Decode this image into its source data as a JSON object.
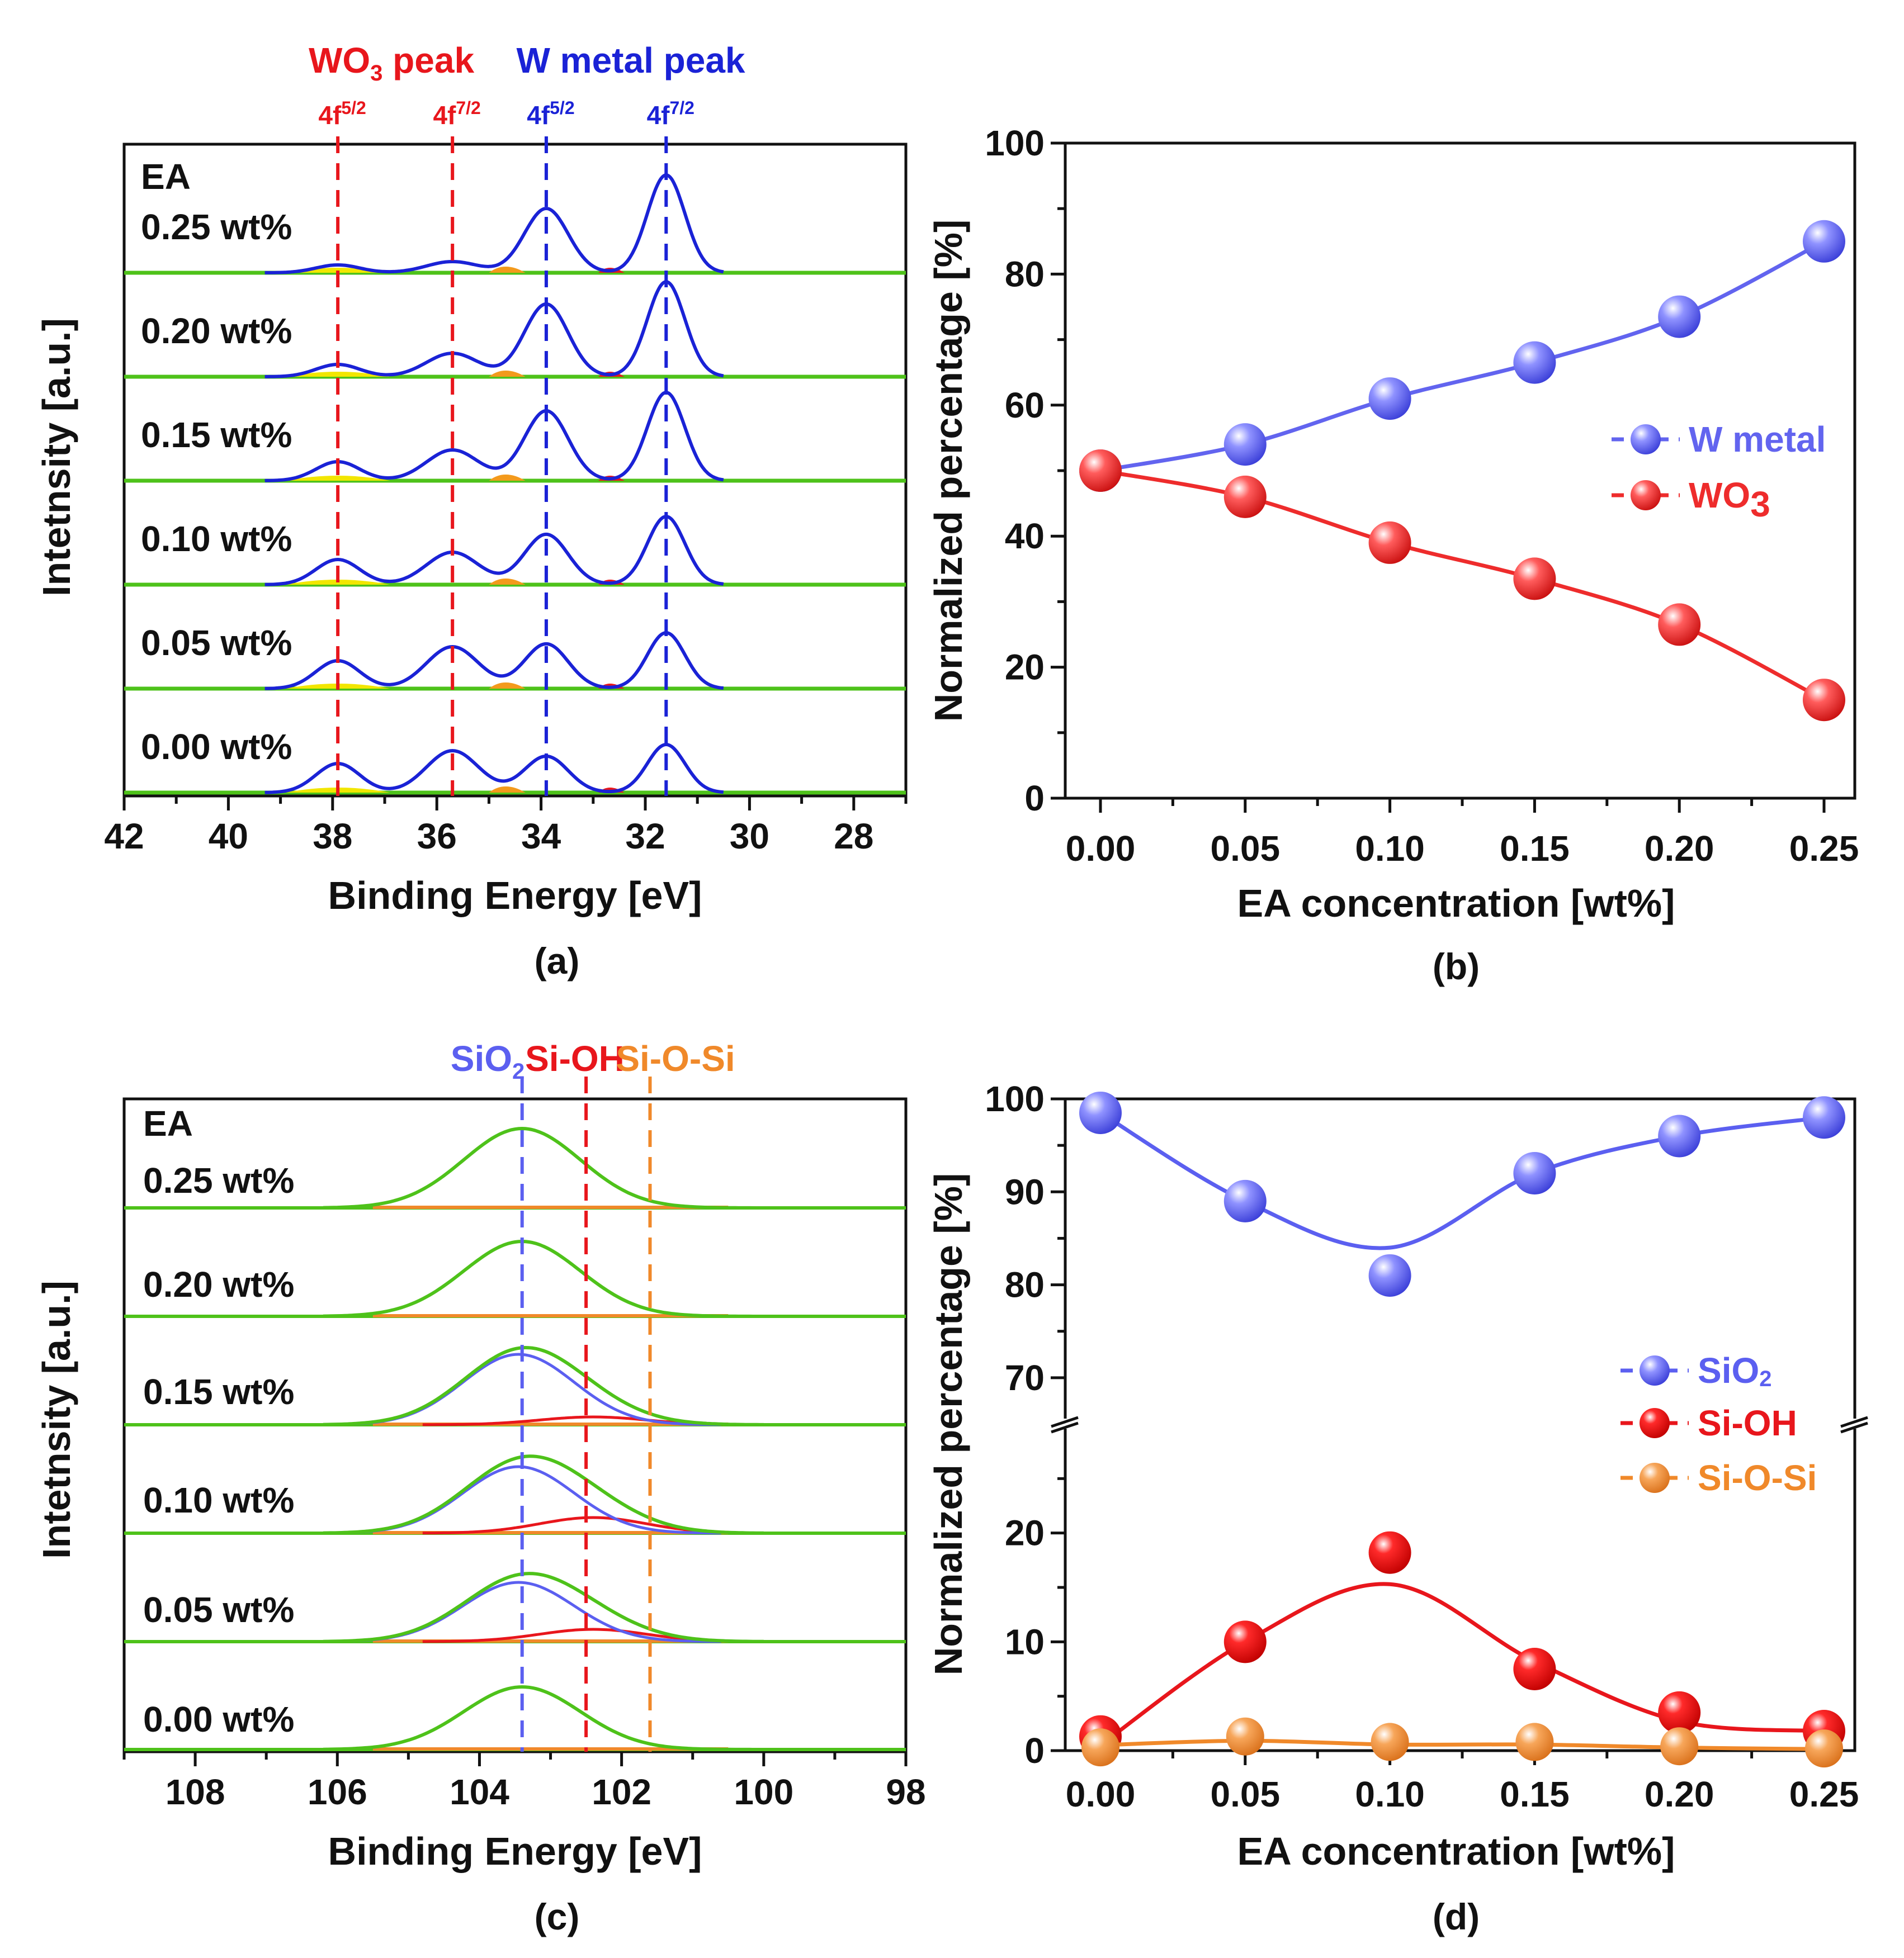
{
  "chart_data": [
    {
      "id": "a",
      "type": "line",
      "panel_label": "(a)",
      "xlabel": "Binding Energy [eV]",
      "ylabel": "Intetnsity [a.u.]",
      "xlim": [
        42,
        27
      ],
      "xticks": [
        "42",
        "40",
        "38",
        "36",
        "34",
        "32",
        "30",
        "28"
      ],
      "inner_label": "EA",
      "samples": [
        "0.25 wt%",
        "0.20 wt%",
        "0.15 wt%",
        "0.10 wt%",
        "0.05 wt%",
        "0.00 wt%"
      ],
      "peak_positions": [
        37.9,
        35.7,
        33.9,
        31.6
      ],
      "annotations": {
        "group1": {
          "text": "WO",
          "sub": "3",
          "suffix": " peak",
          "color": "#e8161c"
        },
        "group2": {
          "text": "W metal peak",
          "color": "#1a22d6"
        },
        "peaks": [
          {
            "text": "4f",
            "sup": "5/2",
            "color": "#e8161c"
          },
          {
            "text": "4f",
            "sup": "7/2",
            "color": "#e8161c"
          },
          {
            "text": "4f",
            "sup": "5/2",
            "color": "#1a22d6"
          },
          {
            "text": "4f",
            "sup": "7/2",
            "color": "#1a22d6"
          }
        ]
      }
    },
    {
      "id": "b",
      "type": "line",
      "panel_label": "(b)",
      "xlabel": "EA concentration [wt%]",
      "ylabel": "Normalized percentage [%]",
      "x": [
        0.0,
        0.05,
        0.1,
        0.15,
        0.2,
        0.25
      ],
      "xticks": [
        "0.00",
        "0.05",
        "0.10",
        "0.15",
        "0.20",
        "0.25"
      ],
      "ylim": [
        0,
        100
      ],
      "yticks": [
        "0",
        "20",
        "40",
        "60",
        "80",
        "100"
      ],
      "series": [
        {
          "name": "W metal",
          "color": "#6264ef",
          "values": [
            50,
            54,
            61,
            66.5,
            73.5,
            85
          ]
        },
        {
          "name": "WO",
          "name_sub": "3",
          "color": "#ee2c2c",
          "values": [
            50,
            46,
            39,
            33.5,
            26.5,
            15
          ]
        }
      ]
    },
    {
      "id": "c",
      "type": "line",
      "panel_label": "(c)",
      "xlabel": "Binding Energy [eV]",
      "ylabel": "Intetnsity [a.u.]",
      "xlim": [
        109,
        98
      ],
      "xticks": [
        "108",
        "106",
        "104",
        "102",
        "100",
        "98"
      ],
      "inner_label": "EA",
      "samples": [
        "0.25 wt%",
        "0.20 wt%",
        "0.15 wt%",
        "0.10 wt%",
        "0.05 wt%",
        "0.00 wt%"
      ],
      "peak_positions": [
        103.4,
        102.5,
        101.6
      ],
      "annotations": [
        {
          "text": "SiO",
          "sub": "2",
          "color": "#5b5ff0"
        },
        {
          "text": "Si-OH",
          "color": "#e8161c"
        },
        {
          "text": "Si-O-Si",
          "color": "#f0892a"
        }
      ]
    },
    {
      "id": "d",
      "type": "line",
      "panel_label": "(d)",
      "xlabel": "EA concentration [wt%]",
      "ylabel": "Normalized percentage [%]",
      "x": [
        0.0,
        0.05,
        0.1,
        0.15,
        0.2,
        0.25
      ],
      "xticks": [
        "0.00",
        "0.05",
        "0.10",
        "0.15",
        "0.20",
        "0.25"
      ],
      "y_break": {
        "lower": [
          0,
          30
        ],
        "upper": [
          65,
          100
        ]
      },
      "yticks_upper": [
        "70",
        "80",
        "90",
        "100"
      ],
      "yticks_lower": [
        "0",
        "10",
        "20"
      ],
      "series": [
        {
          "name": "SiO",
          "name_sub": "2",
          "color": "#5b5ff0",
          "values": [
            98.5,
            89,
            81,
            92,
            96,
            98
          ],
          "fit_min": 84
        },
        {
          "name": "Si-OH",
          "color": "#e8161c",
          "values": [
            1.3,
            10,
            18.2,
            7.5,
            3.5,
            1.8
          ]
        },
        {
          "name": "Si-O-Si",
          "color": "#f0892a",
          "values": [
            0.3,
            1.3,
            0.8,
            0.8,
            0.4,
            0.2
          ]
        }
      ]
    }
  ]
}
